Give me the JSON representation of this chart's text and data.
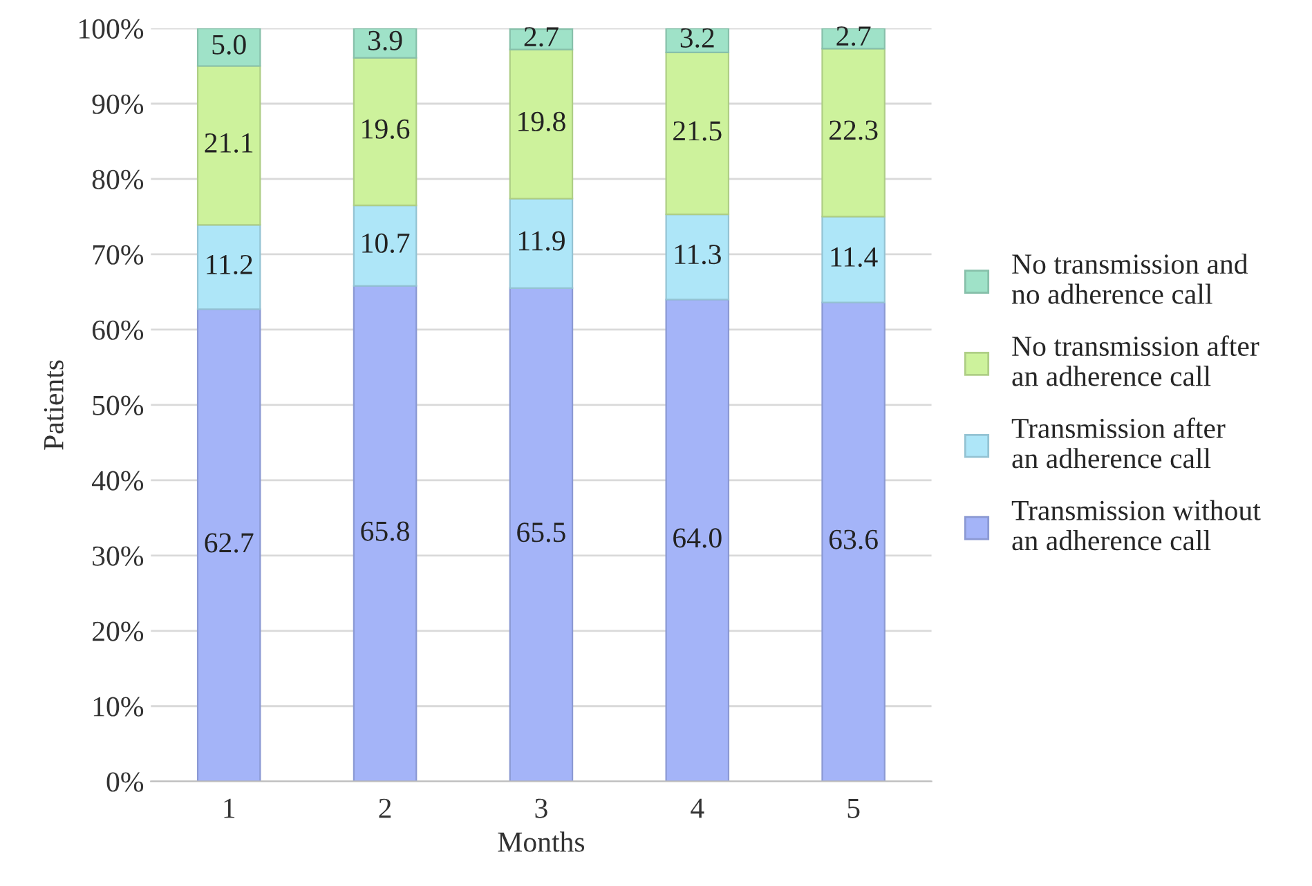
{
  "chart_data": {
    "type": "bar",
    "stacked": true,
    "xlabel": "Months",
    "ylabel": "Patients",
    "categories": [
      "1",
      "2",
      "3",
      "4",
      "5"
    ],
    "series": [
      {
        "name": "Transmission without an adherence call",
        "color": "#a4b4f8",
        "values": [
          62.7,
          65.8,
          65.5,
          64.0,
          63.6
        ],
        "value_labels": [
          "62.7",
          "65.8",
          "65.5",
          "64.0",
          "63.6"
        ]
      },
      {
        "name": "Transmission after an adherence call",
        "color": "#aee6f8",
        "values": [
          11.2,
          10.7,
          11.9,
          11.3,
          11.4
        ],
        "value_labels": [
          "11.2",
          "10.7",
          "11.9",
          "11.3",
          "11.4"
        ]
      },
      {
        "name": "No transmission after an adherence call",
        "color": "#cdf29c",
        "values": [
          21.1,
          19.6,
          19.8,
          21.5,
          22.3
        ],
        "value_labels": [
          "21.1",
          "19.6",
          "19.8",
          "21.5",
          "22.3"
        ]
      },
      {
        "name": "No transmission and no adherence call",
        "color": "#9fe2c8",
        "values": [
          5.0,
          3.9,
          2.7,
          3.2,
          2.7
        ],
        "value_labels": [
          "5.0",
          "3.9",
          "2.7",
          "3.2",
          "2.7"
        ]
      }
    ],
    "ylim": [
      0,
      100
    ],
    "yticks": [
      {
        "value": 0,
        "label": "0%"
      },
      {
        "value": 10,
        "label": "10%"
      },
      {
        "value": 20,
        "label": "20%"
      },
      {
        "value": 30,
        "label": "30%"
      },
      {
        "value": 40,
        "label": "40%"
      },
      {
        "value": 50,
        "label": "50%"
      },
      {
        "value": 60,
        "label": "60%"
      },
      {
        "value": 70,
        "label": "70%"
      },
      {
        "value": 80,
        "label": "80%"
      },
      {
        "value": 90,
        "label": "90%"
      },
      {
        "value": 100,
        "label": "100%"
      }
    ],
    "grid": "y",
    "legend": "right"
  }
}
